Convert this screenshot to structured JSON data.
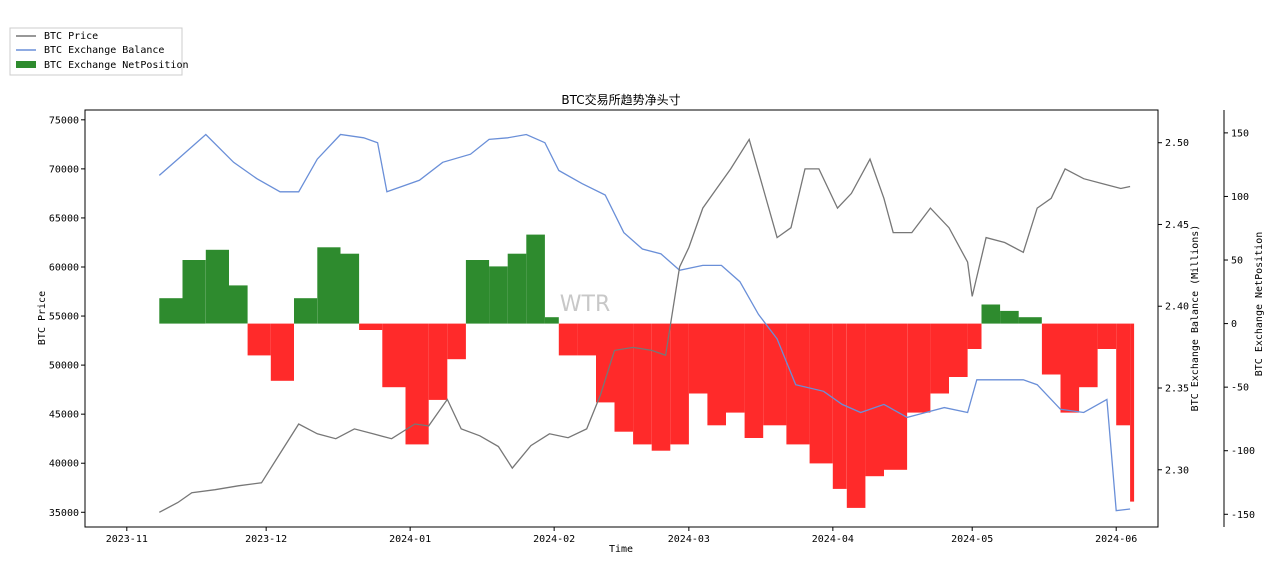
{
  "chart_data": {
    "type": "line",
    "title": "BTC交易所趋势净头寸",
    "xlabel": "Time",
    "ylabel_left": "BTC Price",
    "ylabel_right1": "BTC Exchange Balance (Millions)",
    "ylabel_right2": "BTC Exchange NetPosition",
    "watermark": "WTR",
    "legend": {
      "placement": "top-left, outside plot",
      "entries": [
        "BTC Price",
        "BTC Exchange Balance",
        "BTC Exchange NetPosition"
      ]
    },
    "colors": {
      "price": "#777777",
      "balance": "#6a8fd8",
      "positive": "#2e8b2e",
      "negative": "#ff2a2a"
    },
    "x_range": [
      "2023-10-23",
      "2024-06-10"
    ],
    "x_ticks": [
      "2023-11",
      "2023-12",
      "2024-01",
      "2024-02",
      "2024-03",
      "2024-04",
      "2024-05",
      "2024-06"
    ],
    "ylim_price": [
      33500,
      76000
    ],
    "y_ticks_price": [
      "35000",
      "40000",
      "45000",
      "50000",
      "55000",
      "60000",
      "65000",
      "70000",
      "75000"
    ],
    "ylim_balance": [
      2.265,
      2.52
    ],
    "y_ticks_balance": [
      "2.30",
      "2.35",
      "2.40",
      "2.45",
      "2.50"
    ],
    "ylim_netposition": [
      -160,
      168
    ],
    "y_ticks_netposition": [
      "150",
      "100",
      "50",
      "0",
      "-50",
      "-100",
      "-150"
    ],
    "series": [
      {
        "name": "BTC Price",
        "x": [
          "2023-11-08",
          "2023-11-12",
          "2023-11-15",
          "2023-11-20",
          "2023-11-25",
          "2023-11-30",
          "2023-12-04",
          "2023-12-08",
          "2023-12-12",
          "2023-12-16",
          "2023-12-20",
          "2023-12-24",
          "2023-12-28",
          "2024-01-02",
          "2024-01-05",
          "2024-01-09",
          "2024-01-12",
          "2024-01-16",
          "2024-01-20",
          "2024-01-23",
          "2024-01-27",
          "2024-01-31",
          "2024-02-04",
          "2024-02-08",
          "2024-02-11",
          "2024-02-14",
          "2024-02-18",
          "2024-02-22",
          "2024-02-25",
          "2024-02-28",
          "2024-03-01",
          "2024-03-04",
          "2024-03-07",
          "2024-03-10",
          "2024-03-14",
          "2024-03-17",
          "2024-03-20",
          "2024-03-23",
          "2024-03-26",
          "2024-03-29",
          "2024-04-02",
          "2024-04-05",
          "2024-04-09",
          "2024-04-12",
          "2024-04-14",
          "2024-04-18",
          "2024-04-22",
          "2024-04-26",
          "2024-04-30",
          "2024-05-01",
          "2024-05-04",
          "2024-05-08",
          "2024-05-12",
          "2024-05-15",
          "2024-05-18",
          "2024-05-21",
          "2024-05-25",
          "2024-05-29",
          "2024-06-02",
          "2024-06-04"
        ],
        "values": [
          35000,
          36000,
          37000,
          37300,
          37700,
          38000,
          41000,
          44000,
          43000,
          42500,
          43500,
          43000,
          42500,
          44000,
          43800,
          46500,
          43500,
          42800,
          41700,
          39500,
          41800,
          43000,
          42600,
          43500,
          47000,
          51500,
          51800,
          51500,
          51000,
          60000,
          62000,
          66000,
          68000,
          70000,
          73000,
          68000,
          63000,
          64000,
          70000,
          70000,
          66000,
          67500,
          71000,
          67000,
          63500,
          63500,
          66000,
          64000,
          60500,
          57000,
          63000,
          62500,
          61500,
          66000,
          67000,
          70000,
          69000,
          68500,
          68000,
          68200
        ]
      },
      {
        "name": "BTC Exchange Balance",
        "x": [
          "2023-11-08",
          "2023-11-12",
          "2023-11-18",
          "2023-11-24",
          "2023-11-29",
          "2023-12-04",
          "2023-12-08",
          "2023-12-12",
          "2023-12-17",
          "2023-12-22",
          "2023-12-25",
          "2023-12-27",
          "2024-01-03",
          "2024-01-08",
          "2024-01-14",
          "2024-01-18",
          "2024-01-22",
          "2024-01-26",
          "2024-01-30",
          "2024-02-02",
          "2024-02-07",
          "2024-02-12",
          "2024-02-16",
          "2024-02-20",
          "2024-02-24",
          "2024-02-28",
          "2024-03-04",
          "2024-03-08",
          "2024-03-12",
          "2024-03-16",
          "2024-03-20",
          "2024-03-24",
          "2024-03-30",
          "2024-04-03",
          "2024-04-07",
          "2024-04-12",
          "2024-04-17",
          "2024-04-21",
          "2024-04-25",
          "2024-04-30",
          "2024-05-02",
          "2024-05-08",
          "2024-05-12",
          "2024-05-15",
          "2024-05-20",
          "2024-05-25",
          "2024-05-30",
          "2024-06-01",
          "2024-06-04"
        ],
        "values": [
          2.48,
          2.49,
          2.505,
          2.488,
          2.478,
          2.47,
          2.47,
          2.49,
          2.505,
          2.503,
          2.5,
          2.47,
          2.477,
          2.488,
          2.493,
          2.502,
          2.503,
          2.505,
          2.5,
          2.483,
          2.475,
          2.468,
          2.445,
          2.435,
          2.432,
          2.422,
          2.425,
          2.425,
          2.415,
          2.395,
          2.38,
          2.352,
          2.348,
          2.34,
          2.335,
          2.34,
          2.332,
          2.335,
          2.338,
          2.335,
          2.355,
          2.355,
          2.355,
          2.352,
          2.337,
          2.335,
          2.343,
          2.275,
          2.276
        ]
      },
      {
        "name": "BTC Exchange NetPosition",
        "x": [
          "2023-11-08",
          "2023-11-13",
          "2023-11-18",
          "2023-11-23",
          "2023-11-27",
          "2023-12-02",
          "2023-12-07",
          "2023-12-12",
          "2023-12-17",
          "2023-12-21",
          "2023-12-26",
          "2023-12-31",
          "2024-01-05",
          "2024-01-09",
          "2024-01-13",
          "2024-01-18",
          "2024-01-22",
          "2024-01-26",
          "2024-01-30",
          "2024-02-02",
          "2024-02-06",
          "2024-02-10",
          "2024-02-14",
          "2024-02-18",
          "2024-02-22",
          "2024-02-26",
          "2024-03-01",
          "2024-03-05",
          "2024-03-09",
          "2024-03-13",
          "2024-03-17",
          "2024-03-22",
          "2024-03-27",
          "2024-04-01",
          "2024-04-04",
          "2024-04-08",
          "2024-04-12",
          "2024-04-17",
          "2024-04-22",
          "2024-04-26",
          "2024-04-30",
          "2024-05-03",
          "2024-05-07",
          "2024-05-11",
          "2024-05-16",
          "2024-05-20",
          "2024-05-24",
          "2024-05-28",
          "2024-06-01",
          "2024-06-04"
        ],
        "values": [
          20,
          50,
          58,
          30,
          -25,
          -45,
          20,
          60,
          55,
          -5,
          -50,
          -95,
          -60,
          -28,
          50,
          45,
          55,
          70,
          5,
          -25,
          -25,
          -62,
          -85,
          -95,
          -100,
          -95,
          -55,
          -80,
          -70,
          -90,
          -80,
          -95,
          -110,
          -130,
          -145,
          -120,
          -115,
          -70,
          -55,
          -42,
          -20,
          15,
          10,
          5,
          -40,
          -70,
          -50,
          -20,
          -80,
          -140
        ]
      }
    ]
  }
}
